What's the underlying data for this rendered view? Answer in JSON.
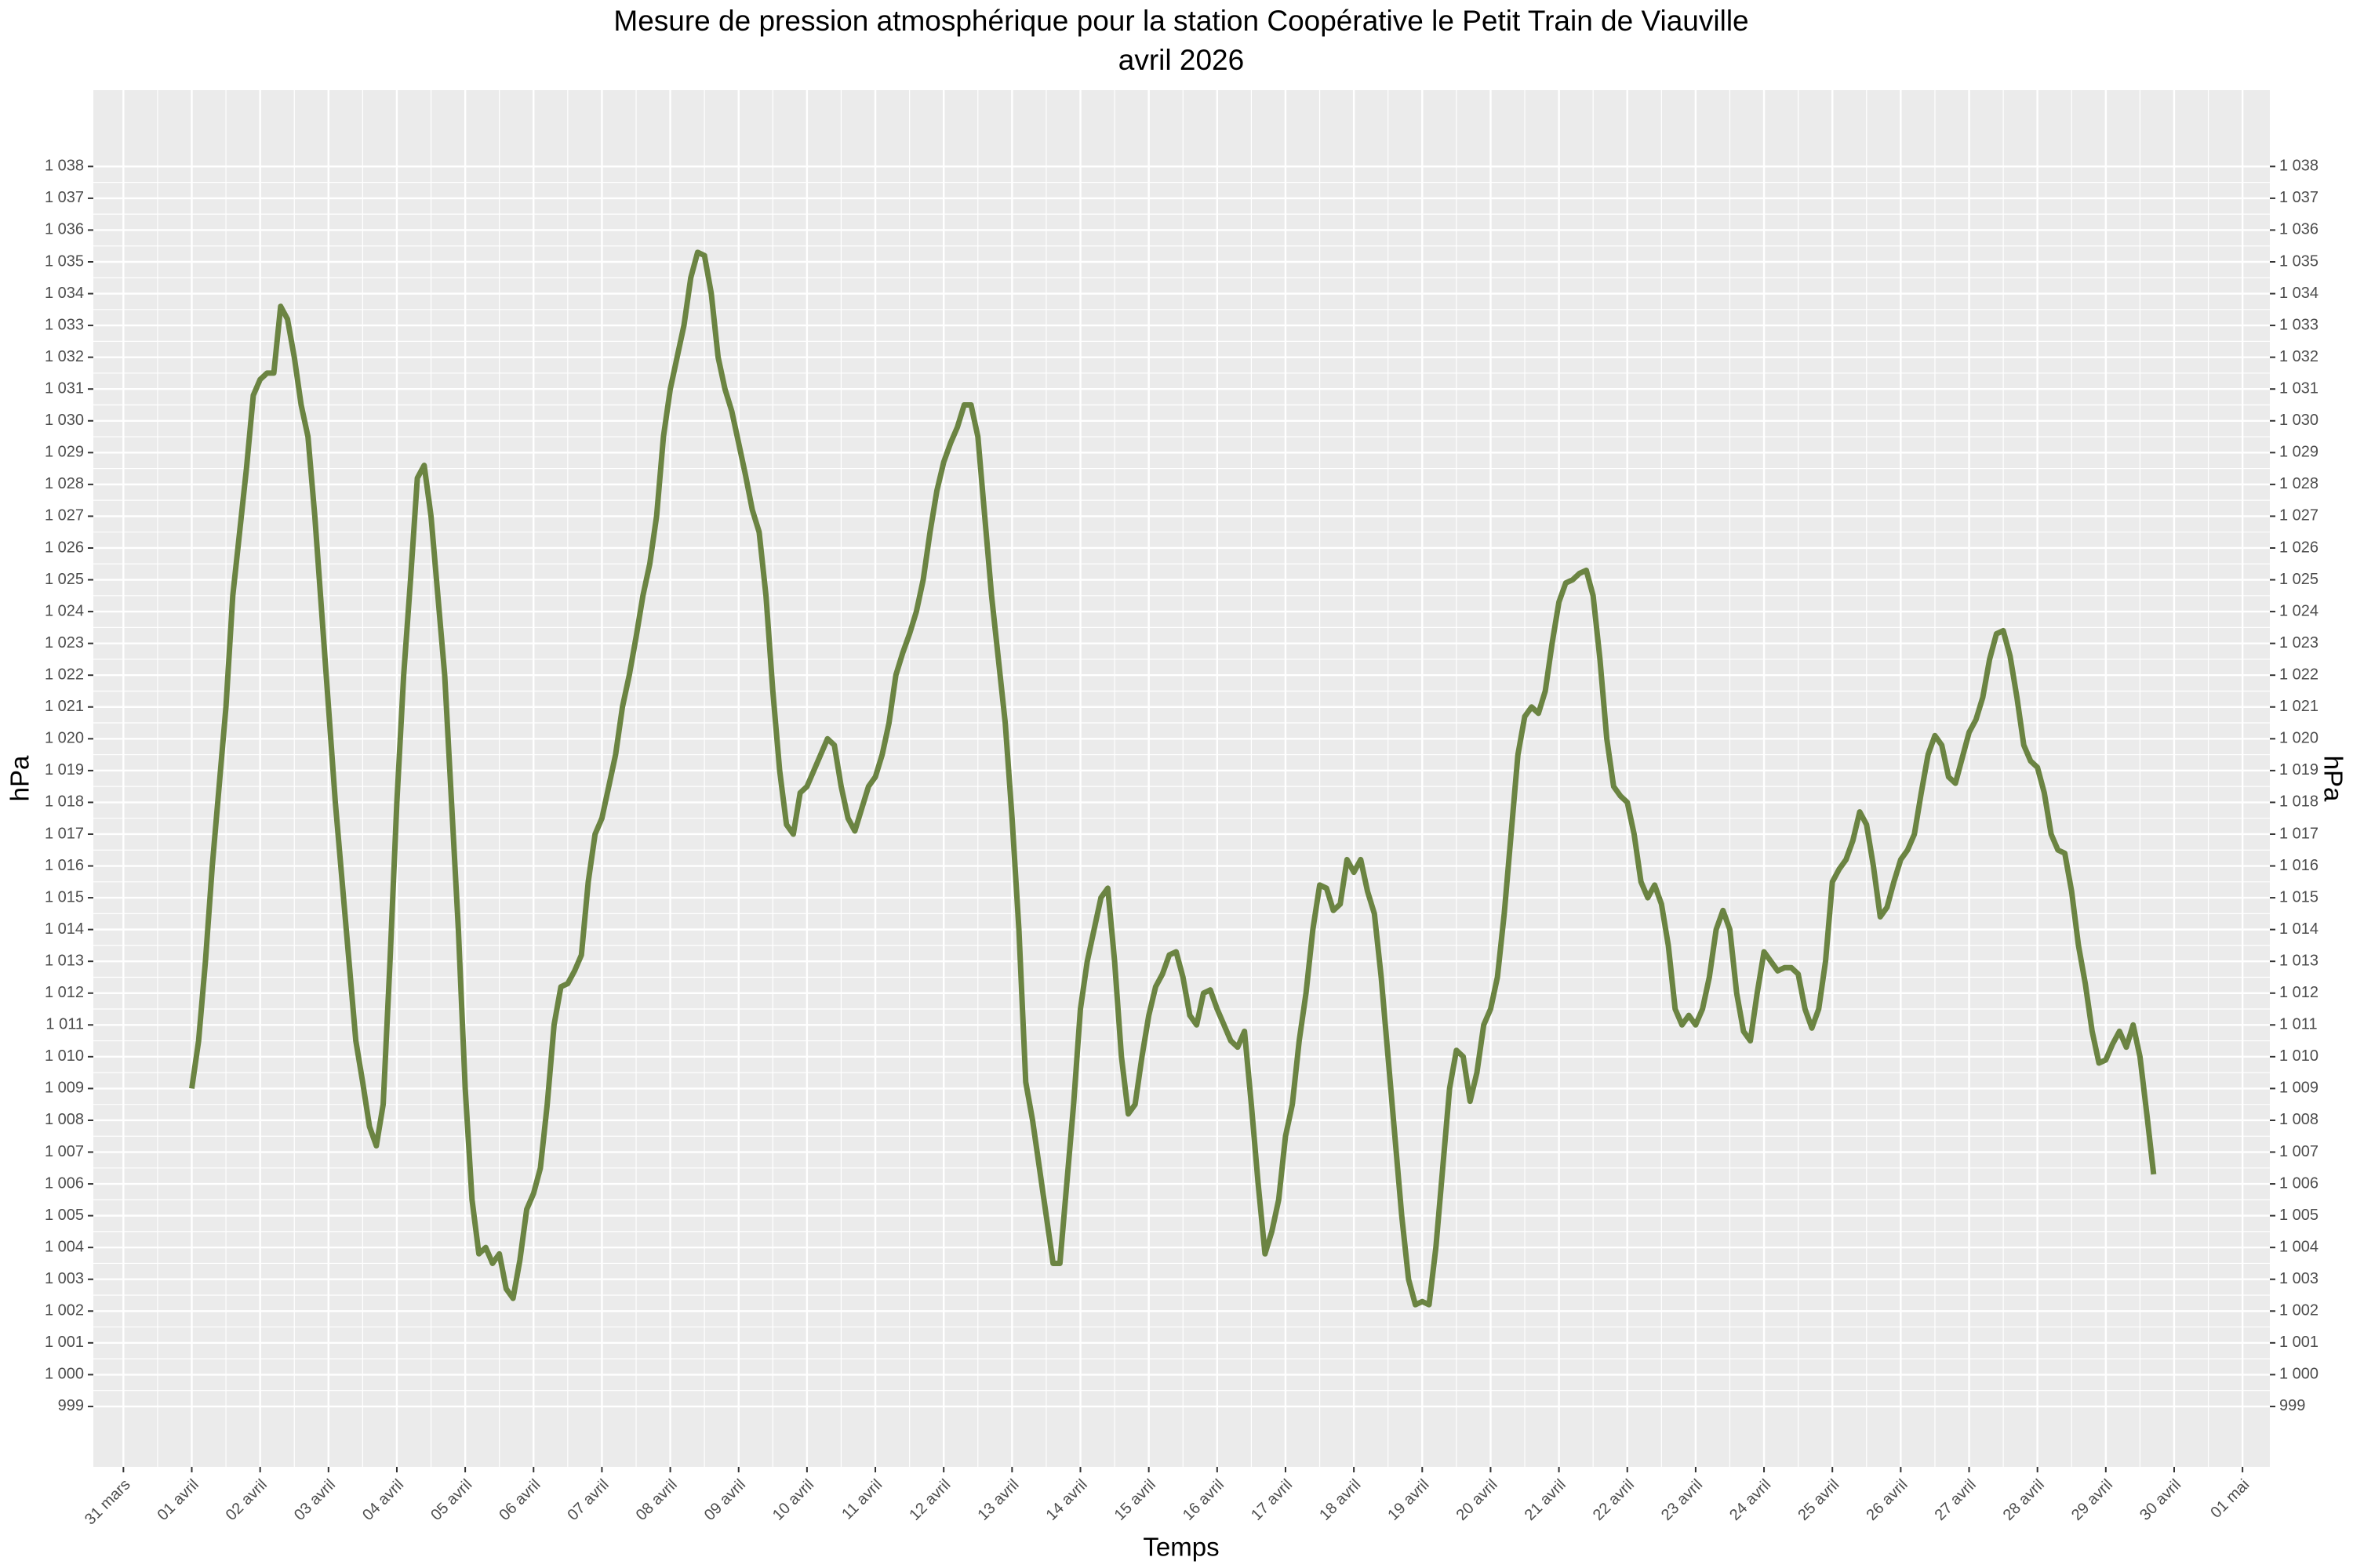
{
  "chart_data": {
    "type": "line",
    "title": "Mesure de pression atmosphérique pour la station Coopérative le Petit Train de Viauville",
    "subtitle": "avril 2026",
    "x_label": "Temps",
    "y_label": "hPa",
    "color": "#6b8442",
    "grid": true,
    "xlim": [
      -0.44,
      31.4
    ],
    "ylim": [
      997.1,
      1040.4
    ],
    "xticks": [
      {
        "value": 0,
        "label": "31 mars"
      },
      {
        "value": 1,
        "label": "01 avril"
      },
      {
        "value": 2,
        "label": "02 avril"
      },
      {
        "value": 3,
        "label": "03 avril"
      },
      {
        "value": 4,
        "label": "04 avril"
      },
      {
        "value": 5,
        "label": "05 avril"
      },
      {
        "value": 6,
        "label": "06 avril"
      },
      {
        "value": 7,
        "label": "07 avril"
      },
      {
        "value": 8,
        "label": "08 avril"
      },
      {
        "value": 9,
        "label": "09 avril"
      },
      {
        "value": 10,
        "label": "10 avril"
      },
      {
        "value": 11,
        "label": "11 avril"
      },
      {
        "value": 12,
        "label": "12 avril"
      },
      {
        "value": 13,
        "label": "13 avril"
      },
      {
        "value": 14,
        "label": "14 avril"
      },
      {
        "value": 15,
        "label": "15 avril"
      },
      {
        "value": 16,
        "label": "16 avril"
      },
      {
        "value": 17,
        "label": "17 avril"
      },
      {
        "value": 18,
        "label": "18 avril"
      },
      {
        "value": 19,
        "label": "19 avril"
      },
      {
        "value": 20,
        "label": "20 avril"
      },
      {
        "value": 21,
        "label": "21 avril"
      },
      {
        "value": 22,
        "label": "22 avril"
      },
      {
        "value": 23,
        "label": "23 avril"
      },
      {
        "value": 24,
        "label": "24 avril"
      },
      {
        "value": 25,
        "label": "25 avril"
      },
      {
        "value": 26,
        "label": "26 avril"
      },
      {
        "value": 27,
        "label": "27 avril"
      },
      {
        "value": 28,
        "label": "28 avril"
      },
      {
        "value": 29,
        "label": "29 avril"
      },
      {
        "value": 30,
        "label": "30 avril"
      },
      {
        "value": 31,
        "label": "01 mai"
      }
    ],
    "yticks": [
      999,
      {
        "value": 1000,
        "label": "1 000"
      },
      {
        "value": 1001,
        "label": "1 001"
      },
      {
        "value": 1002,
        "label": "1 002"
      },
      {
        "value": 1003,
        "label": "1 003"
      },
      {
        "value": 1004,
        "label": "1 004"
      },
      {
        "value": 1005,
        "label": "1 005"
      },
      {
        "value": 1006,
        "label": "1 006"
      },
      {
        "value": 1007,
        "label": "1 007"
      },
      {
        "value": 1008,
        "label": "1 008"
      },
      {
        "value": 1009,
        "label": "1 009"
      },
      {
        "value": 1010,
        "label": "1 010"
      },
      {
        "value": 1011,
        "label": "1 011"
      },
      {
        "value": 1012,
        "label": "1 012"
      },
      {
        "value": 1013,
        "label": "1 013"
      },
      {
        "value": 1014,
        "label": "1 014"
      },
      {
        "value": 1015,
        "label": "1 015"
      },
      {
        "value": 1016,
        "label": "1 016"
      },
      {
        "value": 1017,
        "label": "1 017"
      },
      {
        "value": 1018,
        "label": "1 018"
      },
      {
        "value": 1019,
        "label": "1 019"
      },
      {
        "value": 1020,
        "label": "1 020"
      },
      {
        "value": 1021,
        "label": "1 021"
      },
      {
        "value": 1022,
        "label": "1 022"
      },
      {
        "value": 1023,
        "label": "1 023"
      },
      {
        "value": 1024,
        "label": "1 024"
      },
      {
        "value": 1025,
        "label": "1 025"
      },
      {
        "value": 1026,
        "label": "1 026"
      },
      {
        "value": 1027,
        "label": "1 027"
      },
      {
        "value": 1028,
        "label": "1 028"
      },
      {
        "value": 1029,
        "label": "1 029"
      },
      {
        "value": 1030,
        "label": "1 030"
      },
      {
        "value": 1031,
        "label": "1 031"
      },
      {
        "value": 1032,
        "label": "1 032"
      },
      {
        "value": 1033,
        "label": "1 033"
      },
      {
        "value": 1034,
        "label": "1 034"
      },
      {
        "value": 1035,
        "label": "1 035"
      },
      {
        "value": 1036,
        "label": "1 036"
      },
      {
        "value": 1037,
        "label": "1 037"
      },
      {
        "value": 1038,
        "label": "1 038"
      }
    ],
    "x": [
      1,
      1.1,
      1.2,
      1.3,
      1.4,
      1.5,
      1.6,
      1.7,
      1.8,
      1.9,
      2,
      2.1,
      2.2,
      2.3,
      2.4,
      2.5,
      2.6,
      2.7,
      2.8,
      2.9,
      3,
      3.1,
      3.2,
      3.3,
      3.4,
      3.5,
      3.6,
      3.7,
      3.8,
      3.9,
      4,
      4.1,
      4.2,
      4.3,
      4.4,
      4.5,
      4.6,
      4.7,
      4.8,
      4.9,
      5,
      5.1,
      5.2,
      5.3,
      5.4,
      5.5,
      5.6,
      5.7,
      5.8,
      5.9,
      6,
      6.1,
      6.2,
      6.3,
      6.4,
      6.5,
      6.6,
      6.7,
      6.8,
      6.9,
      7,
      7.1,
      7.2,
      7.3,
      7.4,
      7.5,
      7.6,
      7.7,
      7.8,
      7.9,
      8,
      8.1,
      8.2,
      8.3,
      8.4,
      8.5,
      8.6,
      8.7,
      8.8,
      8.9,
      9,
      9.1,
      9.2,
      9.3,
      9.4,
      9.5,
      9.6,
      9.7,
      9.8,
      9.9,
      10,
      10.1,
      10.2,
      10.3,
      10.4,
      10.5,
      10.6,
      10.7,
      10.8,
      10.9,
      11,
      11.1,
      11.2,
      11.3,
      11.4,
      11.5,
      11.6,
      11.7,
      11.8,
      11.9,
      12,
      12.1,
      12.2,
      12.3,
      12.4,
      12.5,
      12.6,
      12.7,
      12.8,
      12.9,
      13,
      13.1,
      13.2,
      13.3,
      13.4,
      13.5,
      13.6,
      13.7,
      13.8,
      13.9,
      14,
      14.1,
      14.2,
      14.3,
      14.4,
      14.5,
      14.6,
      14.7,
      14.8,
      14.9,
      15,
      15.1,
      15.2,
      15.3,
      15.4,
      15.5,
      15.6,
      15.7,
      15.8,
      15.9,
      16,
      16.1,
      16.2,
      16.3,
      16.4,
      16.5,
      16.6,
      16.7,
      16.8,
      16.9,
      17,
      17.1,
      17.2,
      17.3,
      17.4,
      17.5,
      17.6,
      17.7,
      17.8,
      17.9,
      18,
      18.1,
      18.2,
      18.3,
      18.4,
      18.5,
      18.6,
      18.7,
      18.8,
      18.9,
      19,
      19.1,
      19.2,
      19.3,
      19.4,
      19.5,
      19.6,
      19.7,
      19.8,
      19.9,
      20,
      20.1,
      20.2,
      20.3,
      20.4,
      20.5,
      20.6,
      20.7,
      20.8,
      20.9,
      21,
      21.1,
      21.2,
      21.3,
      21.4,
      21.5,
      21.6,
      21.7,
      21.8,
      21.9,
      22,
      22.1,
      22.2,
      22.3,
      22.4,
      22.5,
      22.6,
      22.7,
      22.8,
      22.9,
      23,
      23.1,
      23.2,
      23.3,
      23.4,
      23.5,
      23.6,
      23.7,
      23.8,
      23.9,
      24,
      24.1,
      24.2,
      24.3,
      24.4,
      24.5,
      24.6,
      24.7,
      24.8,
      24.9,
      25,
      25.1,
      25.2,
      25.3,
      25.4,
      25.5,
      25.6,
      25.7,
      25.8,
      25.9,
      26,
      26.1,
      26.2,
      26.3,
      26.4,
      26.5,
      26.6,
      26.7,
      26.8,
      26.9,
      27,
      27.1,
      27.2,
      27.3,
      27.4,
      27.5,
      27.6,
      27.7,
      27.8,
      27.9,
      28,
      28.1,
      28.2,
      28.3,
      28.4,
      28.5,
      28.6,
      28.7,
      28.8,
      28.9,
      29,
      29.1,
      29.2,
      29.3,
      29.4,
      29.5,
      29.6,
      29.7
    ],
    "values": [
      1009,
      1010.5,
      1013,
      1016,
      1018.5,
      1021,
      1024.5,
      1026.5,
      1028.5,
      1030.8,
      1031.3,
      1031.5,
      1031.5,
      1033.6,
      1033.2,
      1032,
      1030.5,
      1029.5,
      1027,
      1024,
      1021,
      1018,
      1015.5,
      1013,
      1010.5,
      1009.2,
      1007.8,
      1007.2,
      1008.5,
      1013,
      1018,
      1022,
      1025,
      1028.2,
      1028.6,
      1027,
      1024.5,
      1022,
      1018,
      1014,
      1009,
      1005.5,
      1003.8,
      1004,
      1003.5,
      1003.8,
      1002.7,
      1002.4,
      1003.6,
      1005.2,
      1005.7,
      1006.5,
      1008.5,
      1011,
      1012.2,
      1012.3,
      1012.7,
      1013.2,
      1015.5,
      1017,
      1017.5,
      1018.5,
      1019.5,
      1021,
      1022,
      1023.2,
      1024.5,
      1025.5,
      1027,
      1029.5,
      1031,
      1032,
      1033,
      1034.5,
      1035.3,
      1035.2,
      1034,
      1032,
      1031,
      1030.3,
      1029.3,
      1028.3,
      1027.2,
      1026.5,
      1024.5,
      1021.5,
      1019,
      1017.3,
      1017,
      1018.3,
      1018.5,
      1019,
      1019.5,
      1020,
      1019.8,
      1018.5,
      1017.5,
      1017.1,
      1017.8,
      1018.5,
      1018.8,
      1019.5,
      1020.5,
      1022,
      1022.7,
      1023.3,
      1024,
      1025,
      1026.5,
      1027.8,
      1028.7,
      1029.3,
      1029.8,
      1030.5,
      1030.5,
      1029.5,
      1027,
      1024.5,
      1022.5,
      1020.5,
      1017.5,
      1014,
      1009.2,
      1008,
      1006.5,
      1005,
      1003.5,
      1003.5,
      1006,
      1008.5,
      1011.5,
      1013,
      1014,
      1015,
      1015.3,
      1013,
      1010,
      1008.2,
      1008.5,
      1010,
      1011.3,
      1012.2,
      1012.6,
      1013.2,
      1013.3,
      1012.5,
      1011.3,
      1011,
      1012,
      1012.1,
      1011.5,
      1011,
      1010.5,
      1010.3,
      1010.8,
      1008.5,
      1006,
      1003.8,
      1004.5,
      1005.5,
      1007.5,
      1008.5,
      1010.5,
      1012,
      1014,
      1015.4,
      1015.3,
      1014.6,
      1014.8,
      1016.2,
      1015.8,
      1016.2,
      1015.2,
      1014.5,
      1012.5,
      1010,
      1007.5,
      1005,
      1003,
      1002.2,
      1002.3,
      1002.2,
      1004,
      1006.5,
      1009,
      1010.2,
      1010,
      1008.6,
      1009.5,
      1011,
      1011.5,
      1012.5,
      1014.5,
      1017,
      1019.5,
      1020.7,
      1021,
      1020.8,
      1021.5,
      1023,
      1024.3,
      1024.9,
      1025,
      1025.2,
      1025.3,
      1024.5,
      1022.5,
      1020,
      1018.5,
      1018.2,
      1018,
      1017,
      1015.5,
      1015,
      1015.4,
      1014.8,
      1013.5,
      1011.5,
      1011,
      1011.3,
      1011,
      1011.5,
      1012.5,
      1014,
      1014.6,
      1014,
      1012,
      1010.8,
      1010.5,
      1012,
      1013.3,
      1013,
      1012.7,
      1012.8,
      1012.8,
      1012.6,
      1011.5,
      1010.9,
      1011.5,
      1013,
      1015.5,
      1015.9,
      1016.2,
      1016.8,
      1017.7,
      1017.3,
      1016,
      1014.4,
      1014.7,
      1015.5,
      1016.2,
      1016.5,
      1017,
      1018.3,
      1019.5,
      1020.1,
      1019.8,
      1018.8,
      1018.6,
      1019.4,
      1020.2,
      1020.6,
      1021.3,
      1022.5,
      1023.3,
      1023.4,
      1022.6,
      1021.3,
      1019.8,
      1019.3,
      1019.1,
      1018.3,
      1017,
      1016.5,
      1016.4,
      1015.2,
      1013.5,
      1012.3,
      1010.8,
      1009.8,
      1009.9,
      1010.4,
      1010.8,
      1010.3,
      1011,
      1010,
      1008.2,
      1006.3
    ]
  }
}
